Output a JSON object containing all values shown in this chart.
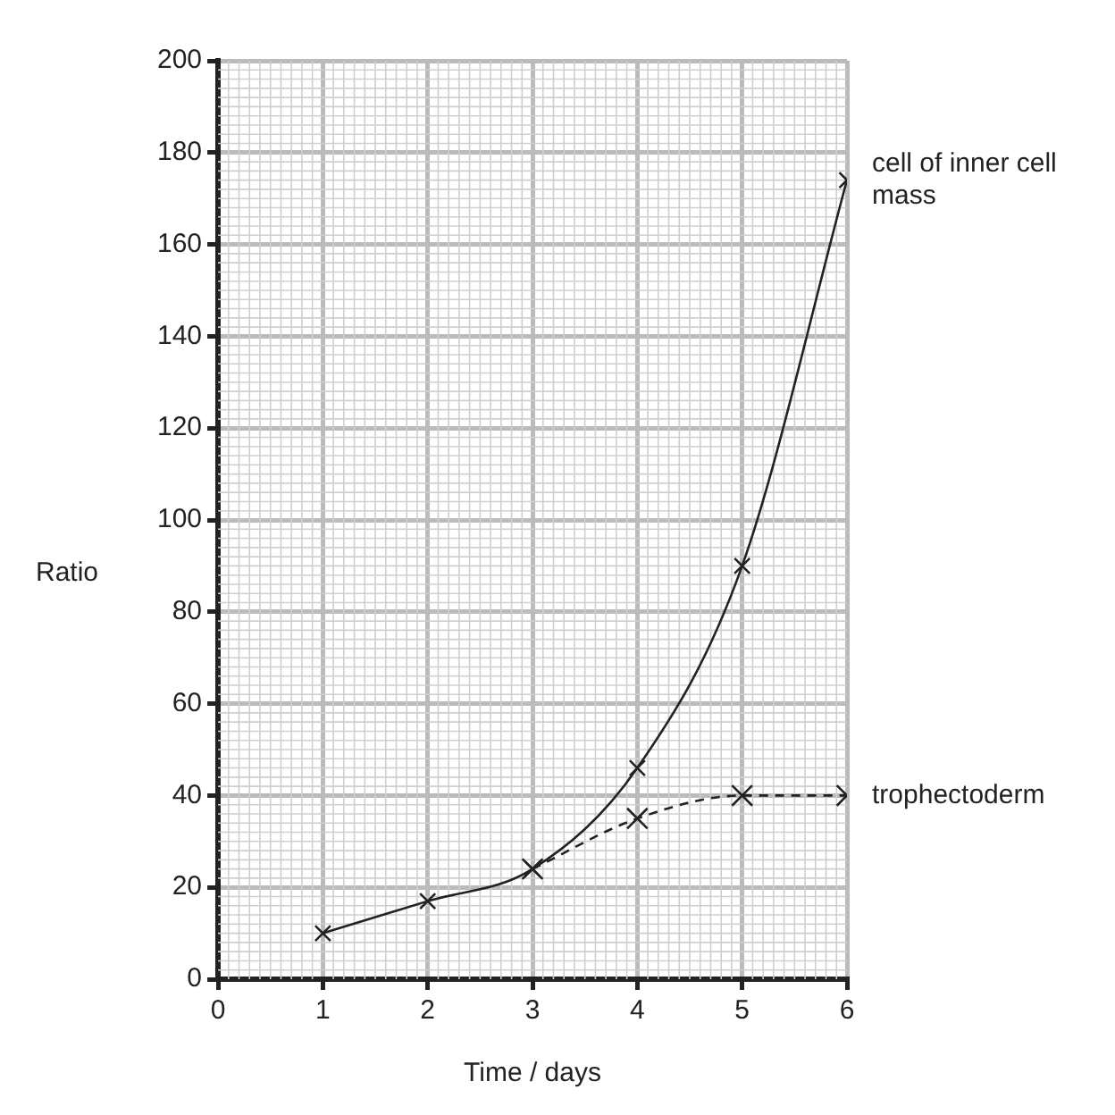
{
  "chart_data": {
    "type": "line",
    "xlabel": "Time / days",
    "ylabel": "Ratio",
    "x": [
      1,
      2,
      3,
      4,
      5,
      6
    ],
    "series": [
      {
        "name": "cell of inner cell mass",
        "color": "#222222",
        "values": [
          10,
          17,
          24,
          46,
          90,
          174
        ],
        "line_style": "solid"
      },
      {
        "name": "trophectoderm",
        "color": "#222222",
        "values": [
          null,
          null,
          24,
          35,
          40,
          40
        ],
        "line_style": "dashed"
      }
    ],
    "xlim": [
      0,
      6
    ],
    "xticks": [
      0,
      1,
      2,
      3,
      4,
      5,
      6
    ],
    "ylim": [
      0,
      200
    ],
    "yticks": [
      0,
      20,
      40,
      60,
      80,
      100,
      120,
      140,
      160,
      180,
      200
    ],
    "grid": true,
    "legend": false,
    "marker": "cross"
  }
}
